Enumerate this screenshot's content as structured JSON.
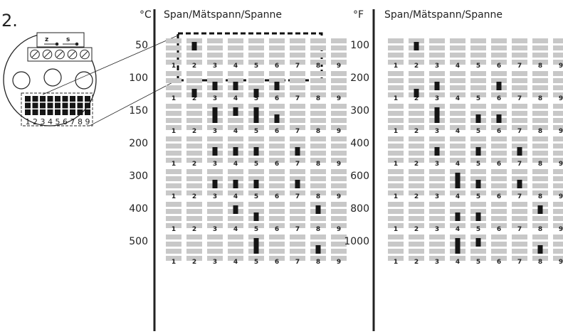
{
  "step_number": "2.",
  "inset": {
    "jumper_labels": [
      "z",
      "s"
    ],
    "dip_numbers": [
      "1",
      "2",
      "3",
      "4",
      "5",
      "6",
      "7",
      "8",
      "9"
    ]
  },
  "panels": [
    {
      "unit": "°C",
      "header": "Span/Mätspann/Spanne",
      "position_numbers": [
        "1",
        "2",
        "3",
        "4",
        "5",
        "6",
        "7",
        "8",
        "9"
      ],
      "rows": [
        {
          "label": "50",
          "switches_on": [
            [
              2,
              1
            ]
          ]
        },
        {
          "label": "100",
          "switches_on": [
            [
              2,
              3
            ],
            [
              3,
              2
            ],
            [
              4,
              2
            ],
            [
              5,
              3
            ],
            [
              6,
              2
            ]
          ]
        },
        {
          "label": "150",
          "switches_on": [
            [
              3,
              1
            ],
            [
              3,
              2
            ],
            [
              4,
              1
            ],
            [
              5,
              1
            ],
            [
              5,
              2
            ],
            [
              6,
              2
            ]
          ]
        },
        {
          "label": "200",
          "switches_on": [
            [
              3,
              2
            ],
            [
              4,
              2
            ],
            [
              5,
              2
            ],
            [
              7,
              2
            ]
          ]
        },
        {
          "label": "300",
          "switches_on": [
            [
              3,
              2
            ],
            [
              4,
              2
            ],
            [
              5,
              2
            ],
            [
              7,
              2
            ]
          ]
        },
        {
          "label": "400",
          "switches_on": [
            [
              4,
              1
            ],
            [
              5,
              2
            ],
            [
              8,
              1
            ]
          ]
        },
        {
          "label": "500",
          "switches_on": [
            [
              5,
              1
            ],
            [
              5,
              2
            ],
            [
              8,
              2
            ]
          ]
        }
      ]
    },
    {
      "unit": "°F",
      "header": "Span/Mätspann/Spanne",
      "position_numbers": [
        "1",
        "2",
        "3",
        "4",
        "5",
        "6",
        "7",
        "8",
        "9"
      ],
      "rows": [
        {
          "label": "100",
          "switches_on": [
            [
              2,
              1
            ]
          ]
        },
        {
          "label": "200",
          "switches_on": [
            [
              2,
              3
            ],
            [
              3,
              2
            ],
            [
              6,
              2
            ]
          ]
        },
        {
          "label": "300",
          "switches_on": [
            [
              3,
              1
            ],
            [
              3,
              2
            ],
            [
              5,
              2
            ],
            [
              6,
              2
            ]
          ]
        },
        {
          "label": "400",
          "switches_on": [
            [
              3,
              2
            ],
            [
              5,
              2
            ],
            [
              7,
              2
            ]
          ]
        },
        {
          "label": "600",
          "switches_on": [
            [
              4,
              1
            ],
            [
              4,
              2
            ],
            [
              5,
              2
            ],
            [
              7,
              2
            ]
          ]
        },
        {
          "label": "800",
          "switches_on": [
            [
              4,
              2
            ],
            [
              5,
              2
            ],
            [
              8,
              1
            ]
          ]
        },
        {
          "label": "1000",
          "switches_on": [
            [
              4,
              1
            ],
            [
              4,
              2
            ],
            [
              5,
              1
            ],
            [
              8,
              2
            ]
          ]
        }
      ]
    }
  ],
  "colors": {
    "switch_off": "#c8c8c8",
    "switch_on": "#151515",
    "ink": "#222222"
  }
}
